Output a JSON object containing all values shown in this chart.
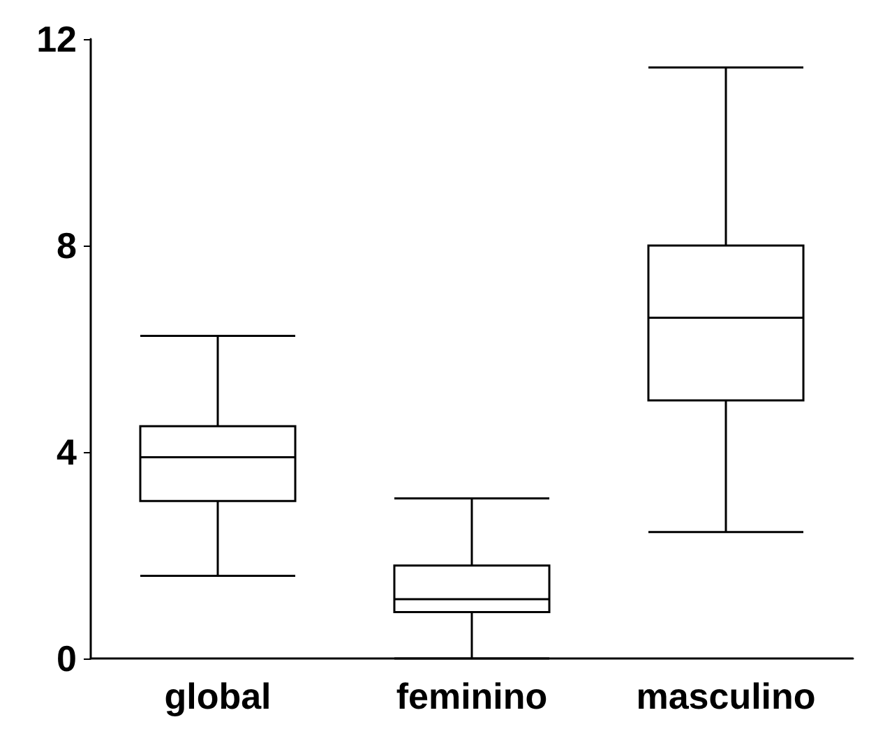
{
  "chart_data": {
    "type": "box",
    "categories": [
      "global",
      "feminino",
      "masculino"
    ],
    "boxes": [
      {
        "low": 1.6,
        "q1": 3.05,
        "median": 3.9,
        "q3": 4.5,
        "high": 6.25
      },
      {
        "low": 0,
        "q1": 0.9,
        "median": 1.15,
        "q3": 1.8,
        "high": 3.1
      },
      {
        "low": 2.45,
        "q1": 5,
        "median": 6.6,
        "q3": 8,
        "high": 11.45
      }
    ],
    "color": "#000000",
    "ylim": [
      0,
      12
    ],
    "yticks": [
      0,
      4,
      8,
      12
    ]
  }
}
